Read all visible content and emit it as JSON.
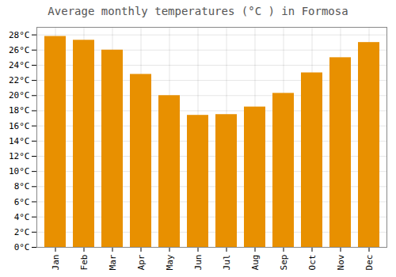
{
  "chart_data": {
    "type": "bar",
    "title": "Average monthly temperatures (°C ) in Formosa",
    "categories": [
      "Jan",
      "Feb",
      "Mar",
      "Apr",
      "May",
      "Jun",
      "Jul",
      "Aug",
      "Sep",
      "Oct",
      "Nov",
      "Dec"
    ],
    "values": [
      27.8,
      27.3,
      26.0,
      22.8,
      20.0,
      17.4,
      17.5,
      18.5,
      20.3,
      23.0,
      25.0,
      27.0
    ],
    "color": "#E89000",
    "ylim": [
      0,
      29
    ],
    "yticks": [
      {
        "value": 0,
        "label": "0°C"
      },
      {
        "value": 2,
        "label": "2°C"
      },
      {
        "value": 4,
        "label": "4°C"
      },
      {
        "value": 6,
        "label": "6°C"
      },
      {
        "value": 8,
        "label": "8°C"
      },
      {
        "value": 10,
        "label": "10°C"
      },
      {
        "value": 12,
        "label": "12°C"
      },
      {
        "value": 14,
        "label": "14°C"
      },
      {
        "value": 16,
        "label": "16°C"
      },
      {
        "value": 18,
        "label": "18°C"
      },
      {
        "value": 20,
        "label": "20°C"
      },
      {
        "value": 22,
        "label": "22°C"
      },
      {
        "value": 24,
        "label": "24°C"
      },
      {
        "value": 26,
        "label": "26°C"
      },
      {
        "value": 28,
        "label": "28°C"
      }
    ],
    "grid": true
  }
}
